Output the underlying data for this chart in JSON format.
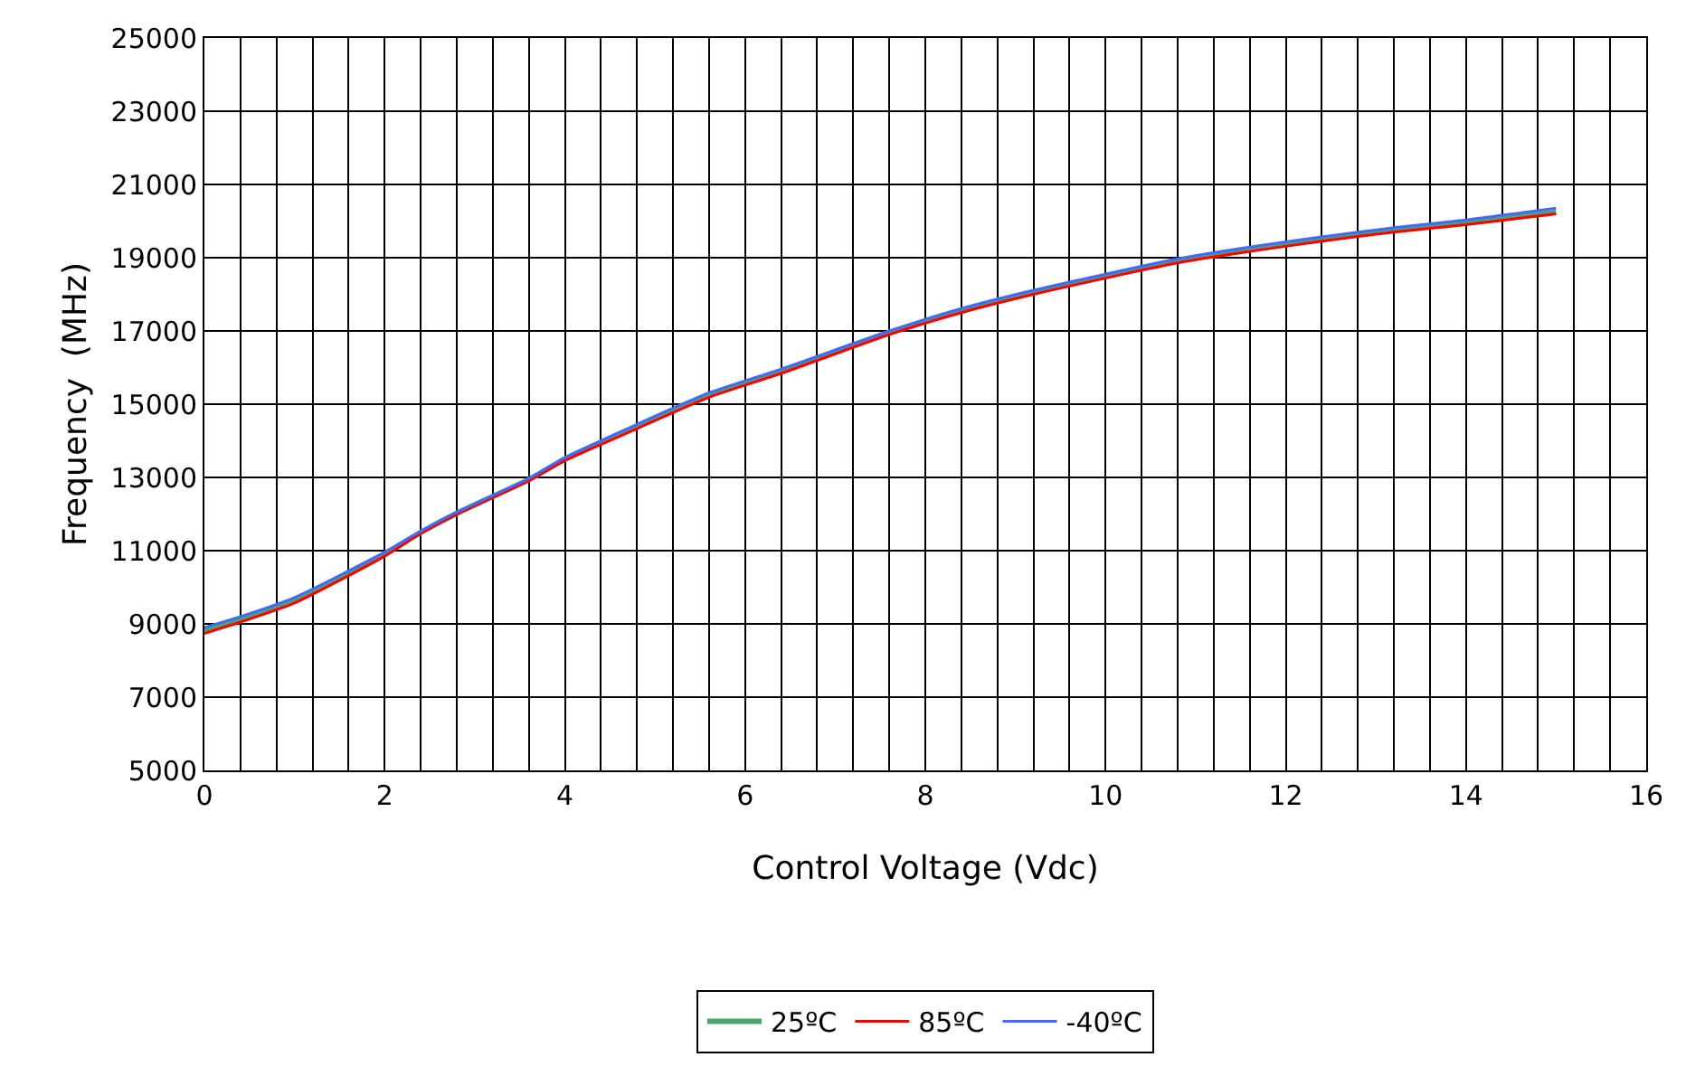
{
  "chart_data": {
    "type": "line",
    "xlabel": "Control Voltage (Vdc)",
    "ylabel": "Frequency  (MHz)",
    "x": [
      0,
      0.4,
      1,
      2,
      2.4,
      2.8,
      3.6,
      4,
      4.8,
      5.6,
      6.4,
      7.6,
      8.4,
      9.2,
      10.8,
      11.6,
      12.4,
      13.2,
      14,
      15
    ],
    "series": [
      {
        "name": "25ºC",
        "color": "#4ca36b",
        "values": [
          8830,
          9130,
          9650,
          10910,
          11500,
          12020,
          12940,
          13500,
          14390,
          15250,
          15900,
          16950,
          17550,
          18050,
          18910,
          19220,
          19500,
          19750,
          19950,
          20240
        ]
      },
      {
        "name": "85ºC",
        "color": "#ff0000",
        "values": [
          8740,
          9050,
          9570,
          10850,
          11470,
          11990,
          12910,
          13460,
          14330,
          15190,
          15840,
          16900,
          17500,
          18000,
          18860,
          19170,
          19450,
          19700,
          19900,
          20200
        ]
      },
      {
        "name": "-40ºC",
        "color": "#4169ff",
        "values": [
          8900,
          9200,
          9720,
          10960,
          11530,
          12050,
          12970,
          13540,
          14450,
          15310,
          15960,
          17000,
          17610,
          18110,
          18970,
          19290,
          19570,
          19820,
          20030,
          20350
        ]
      }
    ],
    "xlim": [
      0,
      16
    ],
    "xticks": [
      0,
      {
        "value": 0.4,
        "label": null
      },
      {
        "value": 0.8,
        "label": null
      },
      {
        "value": 1.2,
        "label": null
      },
      {
        "value": 1.6,
        "label": null
      },
      2,
      {
        "value": 2.4,
        "label": null
      },
      {
        "value": 2.8,
        "label": null
      },
      {
        "value": 3.2,
        "label": null
      },
      {
        "value": 3.6,
        "label": null
      },
      4,
      {
        "value": 4.4,
        "label": null
      },
      {
        "value": 4.8,
        "label": null
      },
      {
        "value": 5.2,
        "label": null
      },
      {
        "value": 5.6,
        "label": null
      },
      6,
      {
        "value": 6.4,
        "label": null
      },
      {
        "value": 6.8,
        "label": null
      },
      {
        "value": 7.2,
        "label": null
      },
      {
        "value": 7.6,
        "label": null
      },
      8,
      {
        "value": 8.4,
        "label": null
      },
      {
        "value": 8.8,
        "label": null
      },
      {
        "value": 9.2,
        "label": null
      },
      {
        "value": 9.6,
        "label": null
      },
      10,
      {
        "value": 10.4,
        "label": null
      },
      {
        "value": 10.8,
        "label": null
      },
      {
        "value": 11.2,
        "label": null
      },
      {
        "value": 11.6,
        "label": null
      },
      12,
      {
        "value": 12.4,
        "label": null
      },
      {
        "value": 12.8,
        "label": null
      },
      {
        "value": 13.2,
        "label": null
      },
      {
        "value": 13.6,
        "label": null
      },
      14,
      {
        "value": 14.4,
        "label": null
      },
      {
        "value": 14.8,
        "label": null
      },
      {
        "value": 15.2,
        "label": null
      },
      {
        "value": 15.6,
        "label": null
      },
      16
    ],
    "ylim": [
      5000,
      25000
    ],
    "yticks": [
      5000,
      7000,
      9000,
      11000,
      13000,
      15000,
      17000,
      19000,
      21000,
      23000,
      25000
    ],
    "grid": true,
    "legend": "bottom",
    "marker": "none",
    "line_style": "solid"
  }
}
